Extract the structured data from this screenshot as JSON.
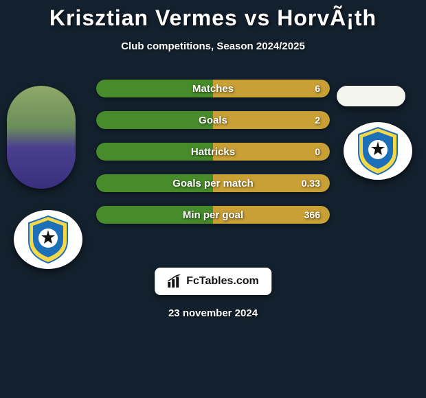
{
  "title": "Krisztian Vermes vs HorvÃ¡th",
  "subtitle": "Club competitions, Season 2024/2025",
  "date": "23 november 2024",
  "footer_label": "FcTables.com",
  "colors": {
    "bg": "#13212e",
    "bar_left": "#478b2a",
    "bar_right": "#c9a035",
    "title": "#ffffff"
  },
  "player_left": {
    "name": "krisztian-vermes-photo"
  },
  "player_right": {
    "name": "horvath-photo"
  },
  "club_crest": {
    "outer": "#f5d84a",
    "inner": "#1d6fb8",
    "ball": "#ffffff"
  },
  "stats": [
    {
      "label": "Matches",
      "value": "6",
      "left_pct": 50,
      "right_pct": 50
    },
    {
      "label": "Goals",
      "value": "2",
      "left_pct": 50,
      "right_pct": 50
    },
    {
      "label": "Hattricks",
      "value": "0",
      "left_pct": 50,
      "right_pct": 50
    },
    {
      "label": "Goals per match",
      "value": "0.33",
      "left_pct": 50,
      "right_pct": 50
    },
    {
      "label": "Min per goal",
      "value": "366",
      "left_pct": 50,
      "right_pct": 50
    }
  ]
}
